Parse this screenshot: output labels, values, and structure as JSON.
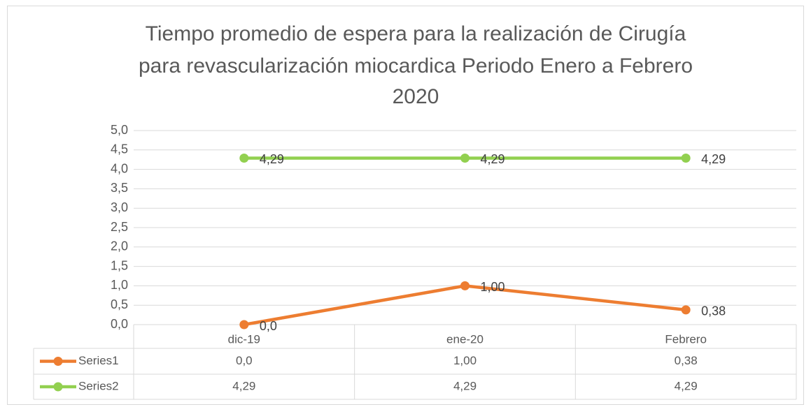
{
  "chart_data": {
    "type": "line",
    "title": [
      "Tiempo promedio de espera para la realización de Cirugía",
      "para revascularización miocardica Periodo Enero a Febrero",
      "2020"
    ],
    "categories": [
      "dic-19",
      "ene-20",
      "Febrero"
    ],
    "series": [
      {
        "name": "Series1",
        "color": "#ed7d31",
        "values": [
          0,
          1,
          0.38
        ],
        "value_labels": [
          "0,0",
          "1,00",
          "0,38"
        ]
      },
      {
        "name": "Series2",
        "color": "#92d050",
        "values": [
          4.29,
          4.29,
          4.29
        ],
        "value_labels": [
          "4,29",
          "4,29",
          "4,29"
        ]
      }
    ],
    "ylim": [
      0,
      5
    ],
    "yticks": [
      {
        "value": 0,
        "label": "0,0"
      },
      {
        "value": 0.5,
        "label": "0,5"
      },
      {
        "value": 1,
        "label": "1,0"
      },
      {
        "value": 1.5,
        "label": "1,5"
      },
      {
        "value": 2,
        "label": "2,0"
      },
      {
        "value": 2.5,
        "label": "2,5"
      },
      {
        "value": 3,
        "label": "3,0"
      },
      {
        "value": 3.5,
        "label": "3,5"
      },
      {
        "value": 4,
        "label": "4,0"
      },
      {
        "value": 4.5,
        "label": "4,5"
      },
      {
        "value": 5,
        "label": "5,0"
      }
    ],
    "grid": true,
    "data_table": true
  }
}
